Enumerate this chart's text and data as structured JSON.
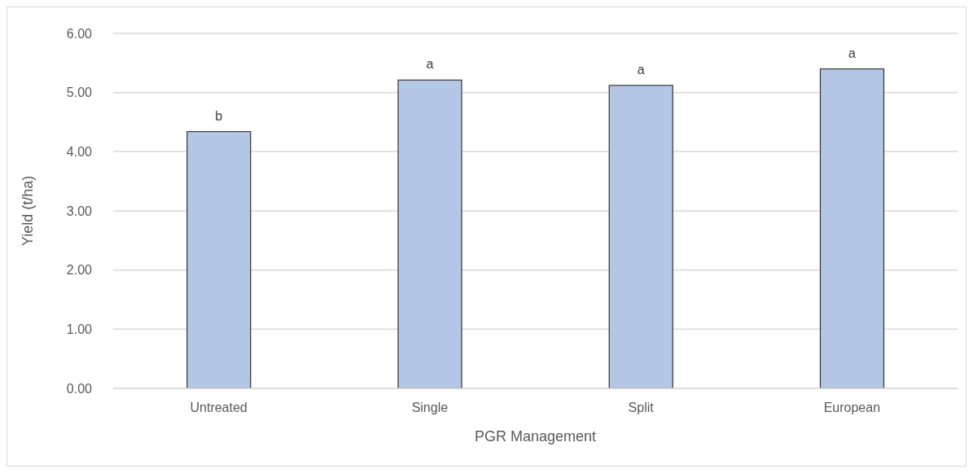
{
  "chart_data": {
    "type": "bar",
    "xlabel": "PGR Management",
    "ylabel": "Yield (t/ha)",
    "categories": [
      "Untreated",
      "Single",
      "Split",
      "European"
    ],
    "values": [
      4.34,
      5.21,
      5.12,
      5.4
    ],
    "color": "#b4c7e7",
    "ylim": [
      0,
      6
    ],
    "yticks": [
      {
        "value": 0,
        "label": "0.00"
      },
      {
        "value": 1,
        "label": "1.00"
      },
      {
        "value": 2,
        "label": "2.00"
      },
      {
        "value": 3,
        "label": "3.00"
      },
      {
        "value": 4,
        "label": "4.00"
      },
      {
        "value": 5,
        "label": "5.00"
      },
      {
        "value": 6,
        "label": "6.00"
      }
    ],
    "grid": "y",
    "annotations": [
      {
        "text": "b",
        "x": "Untreated",
        "y": 4.34
      },
      {
        "text": "a",
        "x": "Single",
        "y": 5.21
      },
      {
        "text": "a",
        "x": "Split",
        "y": 5.12
      },
      {
        "text": "a",
        "x": "European",
        "y": 5.4
      }
    ]
  }
}
